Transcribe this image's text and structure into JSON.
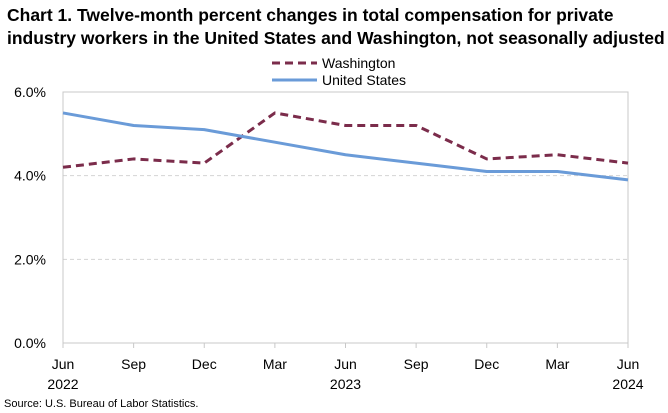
{
  "chart_data": {
    "type": "line",
    "title_line1": "Chart 1. Twelve-month percent changes in total compensation for private",
    "title_line2": "industry workers in the United States and Washington, not seasonally adjusted",
    "categories": [
      "Jun 2022",
      "Sep 2022",
      "Dec 2022",
      "Mar 2023",
      "Jun 2023",
      "Sep 2023",
      "Dec 2023",
      "Mar 2024",
      "Jun 2024"
    ],
    "x_tick_labels": [
      "Jun",
      "Sep",
      "Dec",
      "Mar",
      "Jun",
      "Sep",
      "Dec",
      "Mar",
      "Jun"
    ],
    "x_year_labels": [
      {
        "index": 0,
        "label": "2022"
      },
      {
        "index": 4,
        "label": "2023"
      },
      {
        "index": 8,
        "label": "2024"
      }
    ],
    "ylim": [
      0,
      6
    ],
    "y_ticks": [
      0,
      2,
      4,
      6
    ],
    "y_tick_labels": [
      "0.0%",
      "2.0%",
      "4.0%",
      "6.0%"
    ],
    "series": [
      {
        "name": "Washington",
        "color": "#7b2c4b",
        "style": "dashed",
        "values": [
          4.2,
          4.4,
          4.3,
          5.5,
          5.2,
          5.2,
          4.4,
          4.5,
          4.3
        ]
      },
      {
        "name": "United States",
        "color": "#6a9bd8",
        "style": "solid",
        "values": [
          5.5,
          5.2,
          5.1,
          4.8,
          4.5,
          4.3,
          4.1,
          4.1,
          3.9
        ]
      }
    ],
    "legend_position": "top-center",
    "grid": "horizontal dashed"
  },
  "source": "Source: U.S. Bureau of Labor Statistics."
}
